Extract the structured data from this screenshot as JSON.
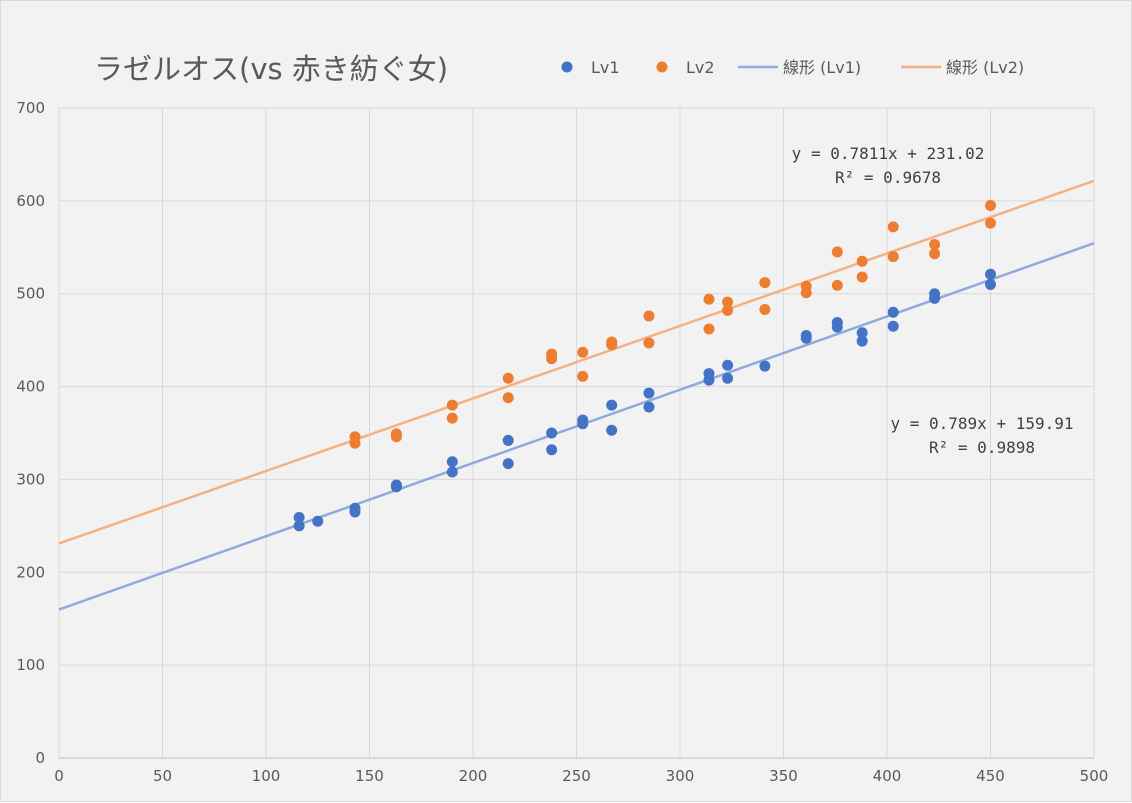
{
  "chart_data": {
    "type": "scatter",
    "title": "ラゼルオス(vs 赤き紡ぐ女)",
    "xlabel": "",
    "ylabel": "",
    "xlim": [
      0,
      500
    ],
    "ylim": [
      0,
      700
    ],
    "x_ticks": [
      "0",
      "50",
      "100",
      "150",
      "200",
      "250",
      "300",
      "350",
      "400",
      "450",
      "500"
    ],
    "y_ticks": [
      "0",
      "100",
      "200",
      "300",
      "400",
      "500",
      "600",
      "700"
    ],
    "grid": true,
    "legend_position": "top-right",
    "colors": {
      "lv1": "#4472c4",
      "lv2": "#ed7d31",
      "trend1": "#8faadc",
      "trend2": "#f4b183",
      "grid": "#d9d9d9",
      "text": "#595959"
    },
    "series": [
      {
        "name": "Lv1",
        "points": [
          [
            116,
            259
          ],
          [
            116,
            250
          ],
          [
            125,
            255
          ],
          [
            143,
            269
          ],
          [
            143,
            265
          ],
          [
            163,
            294
          ],
          [
            163,
            292
          ],
          [
            190,
            319
          ],
          [
            190,
            308
          ],
          [
            217,
            342
          ],
          [
            217,
            317
          ],
          [
            238,
            350
          ],
          [
            238,
            332
          ],
          [
            253,
            364
          ],
          [
            253,
            360
          ],
          [
            267,
            380
          ],
          [
            267,
            353
          ],
          [
            285,
            393
          ],
          [
            285,
            378
          ],
          [
            314,
            414
          ],
          [
            314,
            407
          ],
          [
            323,
            423
          ],
          [
            323,
            409
          ],
          [
            341,
            422
          ],
          [
            361,
            455
          ],
          [
            361,
            452
          ],
          [
            376,
            469
          ],
          [
            376,
            464
          ],
          [
            388,
            458
          ],
          [
            388,
            449
          ],
          [
            403,
            480
          ],
          [
            403,
            465
          ],
          [
            423,
            500
          ],
          [
            423,
            495
          ],
          [
            450,
            521
          ],
          [
            450,
            510
          ]
        ]
      },
      {
        "name": "Lv2",
        "points": [
          [
            143,
            346
          ],
          [
            143,
            339
          ],
          [
            163,
            349
          ],
          [
            163,
            346
          ],
          [
            190,
            380
          ],
          [
            190,
            366
          ],
          [
            217,
            409
          ],
          [
            217,
            388
          ],
          [
            238,
            435
          ],
          [
            238,
            430
          ],
          [
            253,
            437
          ],
          [
            253,
            411
          ],
          [
            267,
            448
          ],
          [
            267,
            445
          ],
          [
            285,
            476
          ],
          [
            285,
            447
          ],
          [
            314,
            494
          ],
          [
            314,
            462
          ],
          [
            323,
            491
          ],
          [
            323,
            482
          ],
          [
            341,
            512
          ],
          [
            341,
            483
          ],
          [
            361,
            508
          ],
          [
            361,
            501
          ],
          [
            376,
            545
          ],
          [
            376,
            509
          ],
          [
            388,
            535
          ],
          [
            388,
            518
          ],
          [
            403,
            572
          ],
          [
            403,
            540
          ],
          [
            423,
            553
          ],
          [
            423,
            543
          ],
          [
            450,
            595
          ],
          [
            450,
            576
          ]
        ]
      }
    ],
    "trendlines": [
      {
        "name": "線形 (Lv1)",
        "slope": 0.789,
        "intercept": 159.91,
        "equation": "y = 0.789x + 159.91",
        "r2": "R² = 0.9898"
      },
      {
        "name": "線形 (Lv2)",
        "slope": 0.7811,
        "intercept": 231.02,
        "equation": "y = 0.7811x + 231.02",
        "r2": "R² = 0.9678"
      }
    ],
    "legend": [
      "Lv1",
      "Lv2",
      "線形 (Lv1)",
      "線形 (Lv2)"
    ]
  }
}
